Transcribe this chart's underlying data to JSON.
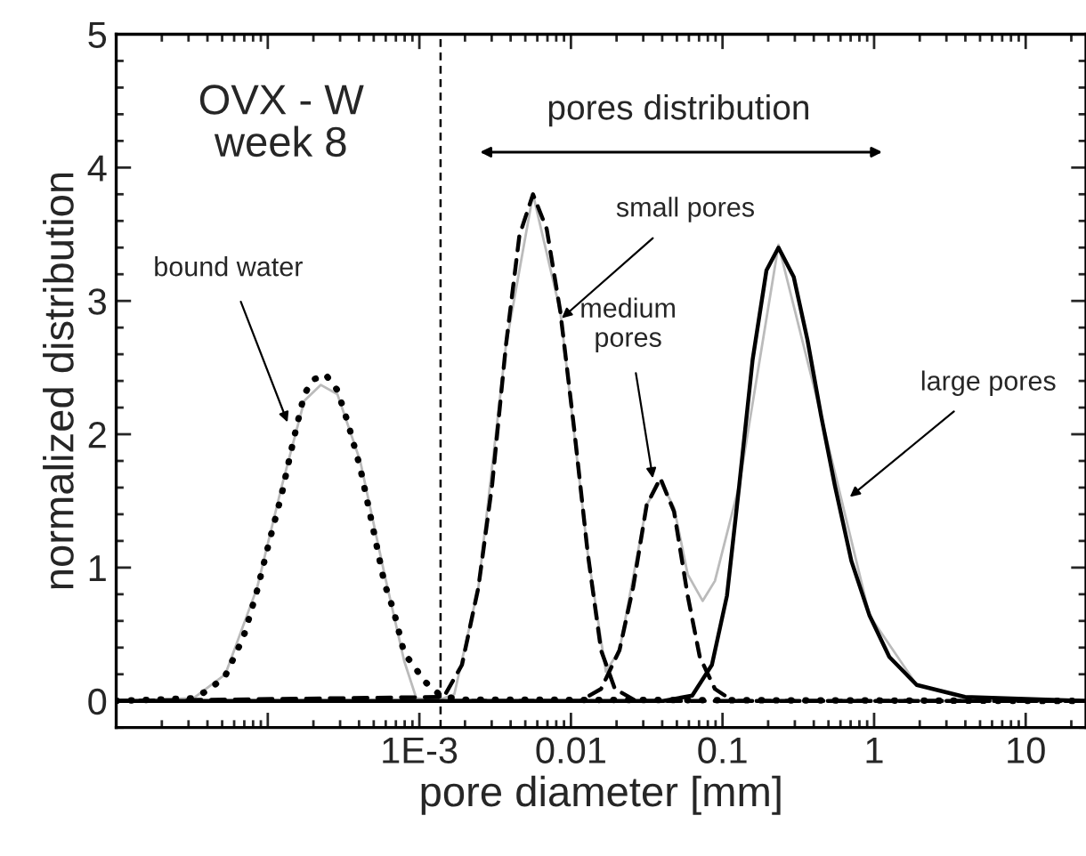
{
  "chart_data": {
    "type": "line",
    "xlabel": "pore diameter [mm]",
    "ylabel": "normalized distribution",
    "log": "x",
    "grid": false,
    "legend": false,
    "marker": "none",
    "xlim": [
      1e-05,
      25
    ],
    "xticks": [
      {
        "value": 1e-05,
        "label": null
      },
      {
        "value": 0.0001,
        "label": null
      },
      {
        "value": 0.001,
        "label": "1E-3"
      },
      0.01,
      0.1,
      1,
      10
    ],
    "ylim": [
      -0.2,
      5
    ],
    "yticks": [
      0,
      1,
      2,
      3,
      4,
      5
    ],
    "ref_lines": [
      {
        "axis": "x",
        "value": 0.00138,
        "label": null,
        "color": "#000000",
        "line_style": "dashed"
      }
    ],
    "annotations": [
      "OVX - W\nweek 8",
      "pores distribution",
      {
        "text": "bound water",
        "x": 0.000135,
        "y": 2.09
      },
      {
        "text": "small pores",
        "x": 0.0087,
        "y": 2.87
      },
      {
        "text": "medium\npores",
        "x": 0.0347,
        "y": 1.67
      },
      {
        "text": "large pores",
        "x": 0.692,
        "y": 1.53
      }
    ],
    "series": [
      {
        "color": "#bbbbbb",
        "line_style": "solid",
        "x": [
          1e-05,
          3.24e-05,
          5.25e-05,
          8.51e-05,
          0.000123,
          0.000174,
          0.000224,
          0.000288,
          0.000407,
          0.000589,
          0.000794,
          0.000955,
          0.00129,
          0.0017,
          0.00245,
          0.00372,
          0.00562,
          0.00851,
          0.0129,
          0.017,
          0.0209,
          0.0316,
          0.0389,
          0.0479,
          0.0589,
          0.074,
          0.0891,
          0.129,
          0.234,
          0.447,
          0.933,
          1.91,
          3.98,
          25
        ],
        "values": [
          0,
          0.02,
          0.2,
          0.85,
          1.6,
          2.25,
          2.37,
          2.3,
          1.8,
          0.95,
          0.3,
          0.02,
          0,
          0.05,
          0.85,
          2.66,
          3.8,
          2.92,
          1.11,
          0.22,
          0.38,
          1.47,
          1.65,
          1.45,
          0.95,
          0.75,
          0.9,
          1.62,
          3.42,
          2.14,
          0.64,
          0.12,
          0.03,
          0
        ]
      },
      {
        "color": "#000000",
        "line_style": "dotted",
        "x": [
          1e-05,
          3.24e-05,
          4.17e-05,
          5.25e-05,
          6.92e-05,
          8.51e-05,
          0.000102,
          0.000123,
          0.000148,
          0.000174,
          0.0002,
          0.00024,
          0.000288,
          0.000339,
          0.000407,
          0.000513,
          0.000589,
          0.000676,
          0.000794,
          0.0011,
          0.00138,
          0.00186,
          25
        ],
        "values": [
          0,
          0.02,
          0.09,
          0.19,
          0.48,
          0.83,
          1.19,
          1.54,
          1.96,
          2.3,
          2.41,
          2.45,
          2.33,
          2.08,
          1.75,
          1.21,
          0.88,
          0.68,
          0.36,
          0.14,
          0.04,
          0.01,
          0
        ]
      },
      {
        "color": "#000000",
        "line_style": "dashed",
        "x": [
          1e-05,
          0.00145,
          0.00191,
          0.00245,
          0.00302,
          0.00372,
          0.00457,
          0.00562,
          0.00692,
          0.00851,
          0.0105,
          0.0129,
          0.0158,
          0.0195,
          0.0269,
          25
        ],
        "values": [
          0,
          0.03,
          0.27,
          0.85,
          1.62,
          2.66,
          3.49,
          3.8,
          3.54,
          2.92,
          2.04,
          1.11,
          0.38,
          0.09,
          0,
          0
        ]
      },
      {
        "color": "#000000",
        "line_style": "dashed",
        "x": [
          1e-05,
          0.0115,
          0.0158,
          0.0209,
          0.0257,
          0.0316,
          0.0389,
          0.0479,
          0.0589,
          0.0708,
          0.0891,
          0.117,
          25
        ],
        "values": [
          0,
          0,
          0.09,
          0.38,
          0.85,
          1.47,
          1.67,
          1.42,
          0.79,
          0.33,
          0.09,
          0,
          0
        ]
      },
      {
        "color": "#000000",
        "line_style": "solid",
        "x": [
          1e-05,
          0.0407,
          0.0631,
          0.0851,
          0.107,
          0.129,
          0.158,
          0.195,
          0.234,
          0.295,
          0.363,
          0.447,
          0.55,
          0.708,
          0.933,
          1.26,
          1.91,
          3.98,
          25
        ],
        "values": [
          0,
          0,
          0.04,
          0.27,
          0.79,
          1.62,
          2.56,
          3.23,
          3.4,
          3.18,
          2.71,
          2.14,
          1.62,
          1.05,
          0.64,
          0.33,
          0.12,
          0.03,
          0
        ]
      }
    ]
  }
}
